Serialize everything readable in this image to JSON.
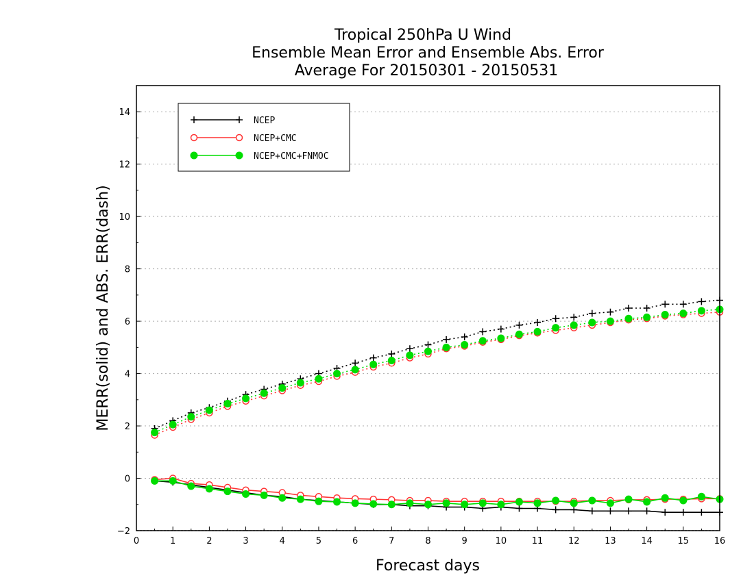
{
  "chart_data": {
    "type": "line",
    "title_lines": [
      "Tropical 250hPa U Wind",
      "Ensemble Mean Error and Ensemble Abs. Error",
      "Average For 20150301 - 20150531"
    ],
    "xlabel": "Forecast days",
    "ylabel": "MERR(solid) and ABS. ERR(dash)",
    "xlim": [
      0,
      16
    ],
    "ylim": [
      -2,
      15
    ],
    "x_ticks": [
      0,
      1,
      2,
      3,
      4,
      5,
      6,
      7,
      8,
      9,
      10,
      11,
      12,
      13,
      14,
      15,
      16
    ],
    "y_ticks": [
      -2,
      0,
      2,
      4,
      6,
      8,
      10,
      12,
      14
    ],
    "grid": "horizontal dotted",
    "legend_position": "top-left",
    "x": [
      0.5,
      1,
      1.5,
      2,
      2.5,
      3,
      3.5,
      4,
      4.5,
      5,
      5.5,
      6,
      6.5,
      7,
      7.5,
      8,
      8.5,
      9,
      9.5,
      10,
      10.5,
      11,
      11.5,
      12,
      12.5,
      13,
      13.5,
      14,
      14.5,
      15,
      15.5,
      16
    ],
    "series": [
      {
        "name": "NCEP",
        "color": "#000000",
        "marker": "plus",
        "mean_error": [
          -0.1,
          -0.15,
          -0.25,
          -0.35,
          -0.45,
          -0.55,
          -0.65,
          -0.7,
          -0.8,
          -0.85,
          -0.9,
          -0.95,
          -1.0,
          -1.0,
          -1.05,
          -1.05,
          -1.1,
          -1.1,
          -1.15,
          -1.1,
          -1.15,
          -1.15,
          -1.2,
          -1.2,
          -1.25,
          -1.25,
          -1.25,
          -1.25,
          -1.3,
          -1.3,
          -1.3,
          -1.3
        ],
        "abs_error": [
          1.9,
          2.2,
          2.5,
          2.7,
          2.95,
          3.2,
          3.4,
          3.6,
          3.8,
          4.0,
          4.2,
          4.4,
          4.6,
          4.75,
          4.95,
          5.1,
          5.3,
          5.4,
          5.6,
          5.7,
          5.85,
          5.95,
          6.1,
          6.15,
          6.3,
          6.35,
          6.5,
          6.5,
          6.65,
          6.65,
          6.75,
          6.8
        ]
      },
      {
        "name": "NCEP+CMC",
        "color": "#ff3333",
        "marker": "open-circle",
        "mean_error": [
          -0.05,
          0.0,
          -0.2,
          -0.25,
          -0.35,
          -0.45,
          -0.5,
          -0.55,
          -0.65,
          -0.7,
          -0.75,
          -0.78,
          -0.8,
          -0.82,
          -0.85,
          -0.85,
          -0.88,
          -0.88,
          -0.88,
          -0.88,
          -0.88,
          -0.88,
          -0.88,
          -0.88,
          -0.85,
          -0.85,
          -0.82,
          -0.82,
          -0.8,
          -0.8,
          -0.78,
          -0.78
        ],
        "abs_error": [
          1.65,
          1.95,
          2.25,
          2.5,
          2.75,
          2.95,
          3.15,
          3.35,
          3.55,
          3.7,
          3.9,
          4.05,
          4.25,
          4.4,
          4.6,
          4.75,
          4.95,
          5.05,
          5.2,
          5.3,
          5.45,
          5.55,
          5.65,
          5.75,
          5.85,
          5.95,
          6.05,
          6.1,
          6.2,
          6.25,
          6.3,
          6.35
        ]
      },
      {
        "name": "NCEP+CMC+FNMOC",
        "color": "#00dd00",
        "marker": "filled-circle",
        "mean_error": [
          -0.1,
          -0.1,
          -0.3,
          -0.4,
          -0.5,
          -0.6,
          -0.65,
          -0.75,
          -0.8,
          -0.88,
          -0.9,
          -0.95,
          -0.98,
          -1.0,
          -0.95,
          -1.0,
          -0.95,
          -1.0,
          -0.95,
          -1.0,
          -0.9,
          -0.95,
          -0.85,
          -0.95,
          -0.85,
          -0.95,
          -0.8,
          -0.9,
          -0.75,
          -0.85,
          -0.7,
          -0.8
        ],
        "abs_error": [
          1.75,
          2.05,
          2.35,
          2.6,
          2.85,
          3.05,
          3.25,
          3.45,
          3.65,
          3.8,
          4.0,
          4.15,
          4.35,
          4.5,
          4.7,
          4.85,
          5.0,
          5.1,
          5.25,
          5.35,
          5.5,
          5.6,
          5.75,
          5.85,
          5.95,
          6.0,
          6.1,
          6.15,
          6.25,
          6.3,
          6.4,
          6.45
        ]
      }
    ]
  }
}
